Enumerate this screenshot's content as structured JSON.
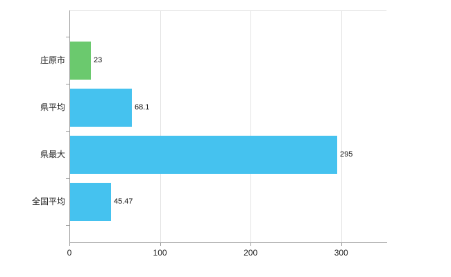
{
  "chart_data": {
    "type": "bar",
    "orientation": "horizontal",
    "title": "",
    "categories": [
      "庄原市",
      "県平均",
      "県最大",
      "全国平均"
    ],
    "values": [
      23,
      68.1,
      295,
      45.47
    ],
    "value_labels": [
      "23",
      "68.1",
      "295",
      "45.47"
    ],
    "bar_colors": [
      "#6bc96e",
      "#45c2ef",
      "#45c2ef",
      "#45c2ef"
    ],
    "x_ticks": [
      0,
      100,
      200,
      300
    ],
    "x_tick_labels": [
      "0",
      "100",
      "200",
      "300"
    ],
    "xlim": [
      0,
      350
    ],
    "grid": true,
    "legend": "none",
    "colors": {
      "grid": "#e3e3e3",
      "axis": "#9b9b9b",
      "text": "#222222"
    }
  }
}
